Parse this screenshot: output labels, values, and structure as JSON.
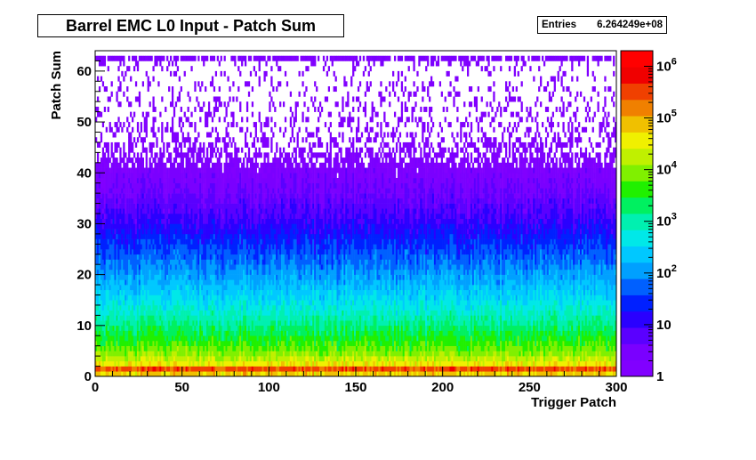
{
  "header": {
    "title": "Barrel EMC L0 Input - Patch Sum"
  },
  "stats": {
    "label": "Entries",
    "value": "6.264249e+08"
  },
  "chart_data": {
    "type": "heatmap",
    "title": "Barrel EMC L0 Input - Patch Sum",
    "xlabel": "Trigger Patch",
    "ylabel": "Patch Sum",
    "xlim": [
      0,
      300
    ],
    "ylim": [
      0,
      64
    ],
    "x_ticks": [
      "0",
      "50",
      "100",
      "150",
      "200",
      "250",
      "300"
    ],
    "x_tick_values": [
      0,
      50,
      100,
      150,
      200,
      250,
      300
    ],
    "y_ticks": [
      "0",
      "10",
      "20",
      "30",
      "40",
      "50",
      "60"
    ],
    "y_tick_values": [
      0,
      10,
      20,
      30,
      40,
      50,
      60
    ],
    "z_scale": "log",
    "zlim": [
      1,
      2000000
    ],
    "z_ticks": [
      {
        "value": 1,
        "label": "1"
      },
      {
        "value": 10,
        "label": "10"
      },
      {
        "value": 100,
        "label": "10",
        "sup": "2"
      },
      {
        "value": 1000,
        "label": "10",
        "sup": "3"
      },
      {
        "value": 10000,
        "label": "10",
        "sup": "4"
      },
      {
        "value": 100000,
        "label": "10",
        "sup": "5"
      },
      {
        "value": 1000000,
        "label": "10",
        "sup": "6"
      }
    ],
    "profile_by_patch_sum": [
      {
        "y": 0,
        "z": 3000
      },
      {
        "y": 1,
        "z": 1500000
      },
      {
        "y": 2,
        "z": 60000
      },
      {
        "y": 3,
        "z": 25000
      },
      {
        "y": 5,
        "z": 8000
      },
      {
        "y": 8,
        "z": 3000
      },
      {
        "y": 12,
        "z": 900
      },
      {
        "y": 16,
        "z": 300
      },
      {
        "y": 20,
        "z": 120
      },
      {
        "y": 25,
        "z": 40
      },
      {
        "y": 30,
        "z": 12
      },
      {
        "y": 35,
        "z": 5
      },
      {
        "y": 40,
        "z": 2.5
      },
      {
        "y": 45,
        "z": 1.5
      },
      {
        "y": 50,
        "z": 1.1
      },
      {
        "y": 60,
        "z": 1
      },
      {
        "y": 62,
        "z": 2
      }
    ],
    "palette": [
      "#8100ff",
      "#7a00ff",
      "#5a00ff",
      "#2a00ff",
      "#0020ff",
      "#0060ff",
      "#00a0ff",
      "#00c8ff",
      "#00e8e8",
      "#00f0b0",
      "#00f060",
      "#20f000",
      "#80f000",
      "#c0f000",
      "#f0f000",
      "#f0c000",
      "#f08000",
      "#f04000",
      "#f00000",
      "#ff0000"
    ],
    "grid": false,
    "legend": "colorbar-right"
  }
}
